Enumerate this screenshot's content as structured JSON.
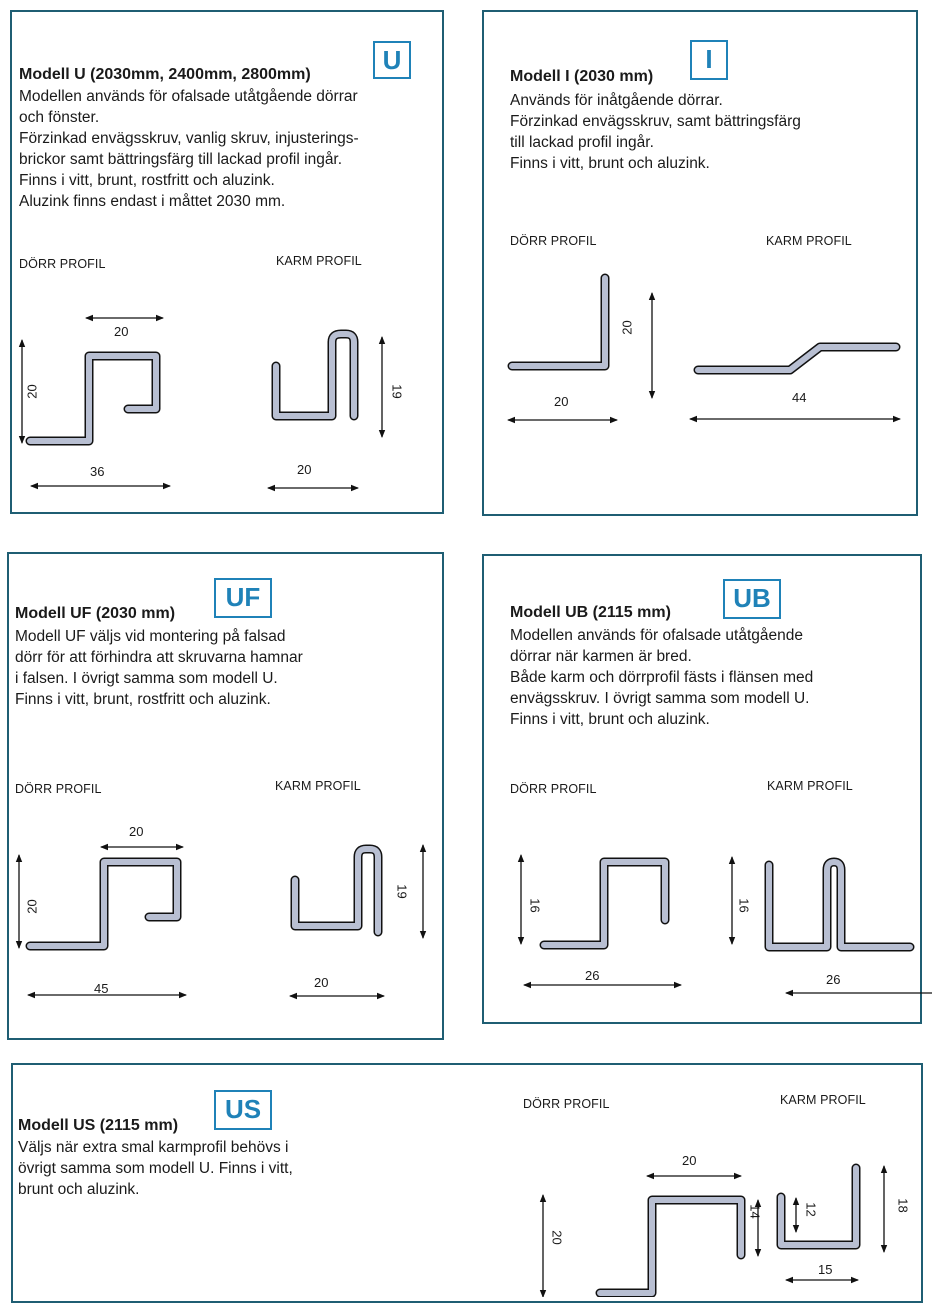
{
  "panels": {
    "u": {
      "title": "Modell U (2030mm, 2400mm, 2800mm)",
      "badge": "U",
      "lines": [
        "Modellen används för ofalsade utåtgående dörrar",
        "och fönster.",
        "Förzinkad envägsskruv, vanlig skruv, injusterings-",
        "brickor samt bättringsfärg till lackad profil ingår.",
        "Finns i vitt, brunt, rostfritt och aluzink.",
        "Aluzink finns endast i måttet 2030 mm."
      ],
      "door_caption": "DÖRR PROFIL",
      "frame_caption": "KARM PROFIL",
      "dims": {
        "door_top": "20",
        "door_height": "20",
        "door_bottom": "36",
        "frame_height": "19",
        "frame_bottom": "20"
      }
    },
    "i": {
      "title": "Modell I (2030 mm)",
      "badge": "I",
      "lines": [
        "Används för inåtgående dörrar.",
        "Förzinkad envägsskruv, samt bättringsfärg",
        "till lackad profil ingår.",
        "Finns i vitt, brunt och aluzink."
      ],
      "door_caption": "DÖRR PROFIL",
      "frame_caption": "KARM PROFIL",
      "dims": {
        "door_height": "20",
        "door_bottom": "20",
        "frame_bottom": "44"
      }
    },
    "uf": {
      "title": "Modell UF (2030 mm)",
      "badge": "UF",
      "lines": [
        "Modell UF väljs vid montering på falsad",
        "dörr för att förhindra att skruvarna hamnar",
        "i falsen. I övrigt samma som modell U.",
        "Finns i vitt, brunt, rostfritt och aluzink."
      ],
      "door_caption": "DÖRR PROFIL",
      "frame_caption": "KARM PROFIL",
      "dims": {
        "door_top": "20",
        "door_height": "20",
        "door_bottom": "45",
        "frame_height": "19",
        "frame_bottom": "20"
      }
    },
    "ub": {
      "title": "Modell UB  (2115 mm)",
      "badge": "UB",
      "lines": [
        "Modellen används för ofalsade utåtgående",
        "dörrar när karmen är bred.",
        "Både karm och dörrprofil fästs i flänsen med",
        "envägsskruv. I övrigt samma som modell U.",
        "Finns i vitt, brunt och aluzink."
      ],
      "door_caption": "DÖRR PROFIL",
      "frame_caption": "KARM PROFIL",
      "dims": {
        "door_height": "16",
        "door_bottom": "26",
        "frame_height": "16",
        "frame_bottom": "26"
      }
    },
    "us": {
      "title": "Modell US (2115 mm)",
      "badge": "US",
      "lines": [
        "Väljs när extra smal karmprofil behövs i",
        "övrigt samma som modell U. Finns i vitt,",
        "brunt och aluzink."
      ],
      "door_caption": "DÖRR PROFIL",
      "frame_caption": "KARM PROFIL",
      "dims": {
        "door_top": "20",
        "door_height": "20",
        "door_lip": "14",
        "frame_inner": "12",
        "frame_height": "18",
        "frame_bottom": "15"
      }
    }
  },
  "colors": {
    "border": "#1f5e73",
    "badge": "#1f82b8",
    "profile_fill": "#b8bfd2"
  }
}
